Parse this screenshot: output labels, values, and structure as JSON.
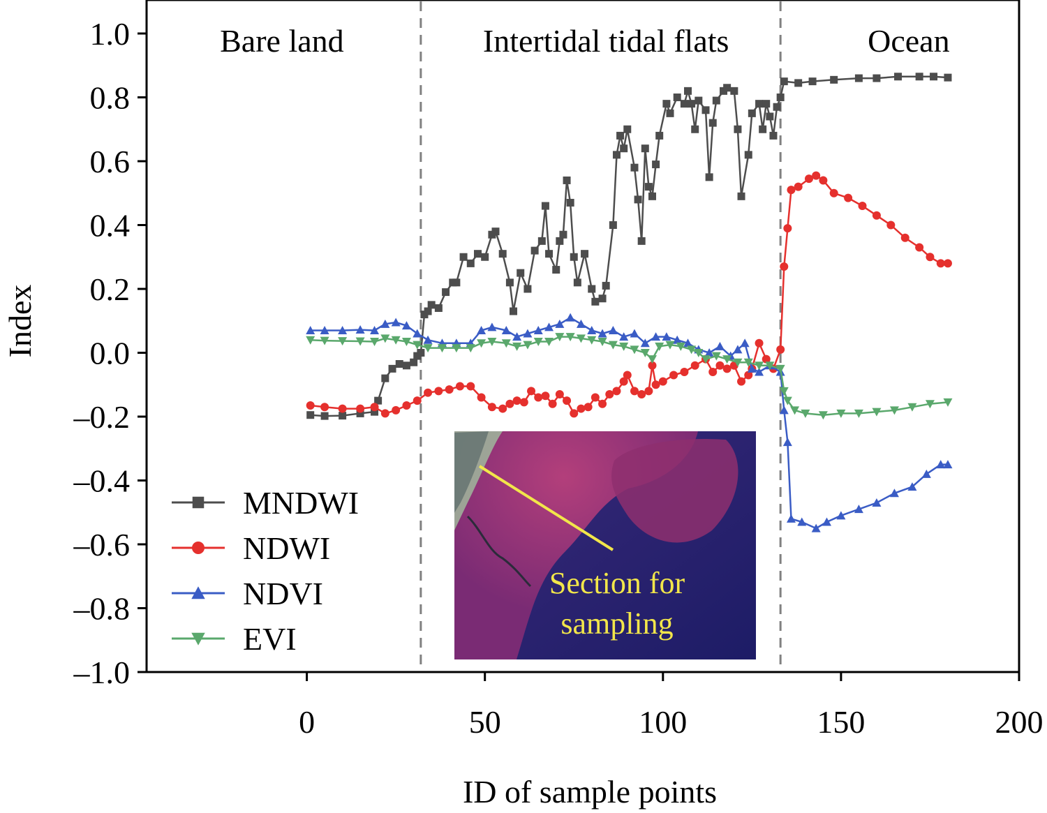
{
  "chart_data": {
    "type": "line",
    "xlabel": "ID of sample points",
    "ylabel": "Index",
    "xlim": [
      -45,
      200
    ],
    "ylim": [
      -1.0,
      1.0
    ],
    "x_ticks": [
      0,
      50,
      100,
      150,
      200
    ],
    "y_ticks": [
      1.0,
      0.8,
      0.6,
      0.4,
      0.2,
      0.0,
      -0.2,
      -0.4,
      -0.6,
      -0.8,
      -1.0
    ],
    "x_tick_labels": [
      "0",
      "50",
      "100",
      "150",
      "200"
    ],
    "y_tick_labels": [
      "1.0",
      "0.8",
      "0.6",
      "0.4",
      "0.2",
      "0.0",
      "–0.2",
      "–0.4",
      "–0.6",
      "–0.8",
      "–1.0"
    ],
    "grid": false,
    "legend_position": "bottom-left",
    "region_dividers": [
      32,
      133
    ],
    "regions": [
      {
        "label": "Bare land",
        "x_center": -7
      },
      {
        "label": "Intertidal tidal flats",
        "x_center": 84
      },
      {
        "label": "Ocean",
        "x_center": 169
      }
    ],
    "inset": {
      "label_lines": [
        "Section for",
        "sampling"
      ]
    },
    "series": [
      {
        "name": "MNDWI",
        "color": "#4d4d4d",
        "marker": "square",
        "points": [
          [
            1,
            -0.195
          ],
          [
            5,
            -0.198
          ],
          [
            10,
            -0.197
          ],
          [
            15,
            -0.19
          ],
          [
            19,
            -0.185
          ],
          [
            20,
            -0.15
          ],
          [
            22,
            -0.08
          ],
          [
            24,
            -0.05
          ],
          [
            26,
            -0.035
          ],
          [
            28,
            -0.04
          ],
          [
            30,
            -0.03
          ],
          [
            31,
            -0.01
          ],
          [
            32,
            0.0
          ],
          [
            33,
            0.12
          ],
          [
            34,
            0.13
          ],
          [
            35,
            0.15
          ],
          [
            37,
            0.14
          ],
          [
            39,
            0.19
          ],
          [
            41,
            0.22
          ],
          [
            42,
            0.22
          ],
          [
            44,
            0.3
          ],
          [
            46,
            0.28
          ],
          [
            48,
            0.31
          ],
          [
            50,
            0.3
          ],
          [
            52,
            0.37
          ],
          [
            53,
            0.38
          ],
          [
            55,
            0.31
          ],
          [
            57,
            0.22
          ],
          [
            58,
            0.13
          ],
          [
            60,
            0.25
          ],
          [
            62,
            0.2
          ],
          [
            64,
            0.32
          ],
          [
            66,
            0.35
          ],
          [
            67,
            0.46
          ],
          [
            68,
            0.31
          ],
          [
            70,
            0.26
          ],
          [
            71,
            0.35
          ],
          [
            72,
            0.37
          ],
          [
            73,
            0.54
          ],
          [
            74,
            0.47
          ],
          [
            75,
            0.3
          ],
          [
            76,
            0.22
          ],
          [
            78,
            0.31
          ],
          [
            80,
            0.2
          ],
          [
            81,
            0.16
          ],
          [
            83,
            0.17
          ],
          [
            84,
            0.21
          ],
          [
            86,
            0.4
          ],
          [
            87,
            0.62
          ],
          [
            88,
            0.68
          ],
          [
            89,
            0.64
          ],
          [
            90,
            0.7
          ],
          [
            92,
            0.58
          ],
          [
            93,
            0.48
          ],
          [
            94,
            0.35
          ],
          [
            95,
            0.64
          ],
          [
            96,
            0.52
          ],
          [
            97,
            0.49
          ],
          [
            98,
            0.59
          ],
          [
            99,
            0.68
          ],
          [
            101,
            0.78
          ],
          [
            102,
            0.75
          ],
          [
            104,
            0.8
          ],
          [
            106,
            0.78
          ],
          [
            107,
            0.82
          ],
          [
            108,
            0.78
          ],
          [
            109,
            0.7
          ],
          [
            110,
            0.79
          ],
          [
            112,
            0.76
          ],
          [
            113,
            0.55
          ],
          [
            114,
            0.72
          ],
          [
            115,
            0.79
          ],
          [
            117,
            0.82
          ],
          [
            118,
            0.83
          ],
          [
            120,
            0.82
          ],
          [
            121,
            0.7
          ],
          [
            122,
            0.49
          ],
          [
            124,
            0.62
          ],
          [
            125,
            0.75
          ],
          [
            127,
            0.78
          ],
          [
            128,
            0.7
          ],
          [
            129,
            0.78
          ],
          [
            130,
            0.74
          ],
          [
            131,
            0.68
          ],
          [
            132,
            0.77
          ],
          [
            133,
            0.8
          ],
          [
            134,
            0.85
          ],
          [
            138,
            0.845
          ],
          [
            142,
            0.85
          ],
          [
            148,
            0.855
          ],
          [
            155,
            0.86
          ],
          [
            160,
            0.86
          ],
          [
            166,
            0.865
          ],
          [
            172,
            0.865
          ],
          [
            176,
            0.865
          ],
          [
            180,
            0.862
          ]
        ]
      },
      {
        "name": "NDWI",
        "color": "#e5302d",
        "marker": "circle",
        "points": [
          [
            1,
            -0.165
          ],
          [
            5,
            -0.17
          ],
          [
            10,
            -0.175
          ],
          [
            15,
            -0.175
          ],
          [
            19,
            -0.17
          ],
          [
            22,
            -0.19
          ],
          [
            25,
            -0.18
          ],
          [
            28,
            -0.165
          ],
          [
            31,
            -0.15
          ],
          [
            34,
            -0.125
          ],
          [
            37,
            -0.12
          ],
          [
            40,
            -0.115
          ],
          [
            43,
            -0.105
          ],
          [
            46,
            -0.105
          ],
          [
            49,
            -0.14
          ],
          [
            52,
            -0.17
          ],
          [
            55,
            -0.175
          ],
          [
            57,
            -0.16
          ],
          [
            59,
            -0.15
          ],
          [
            61,
            -0.155
          ],
          [
            63,
            -0.12
          ],
          [
            65,
            -0.14
          ],
          [
            67,
            -0.135
          ],
          [
            69,
            -0.16
          ],
          [
            71,
            -0.13
          ],
          [
            73,
            -0.15
          ],
          [
            75,
            -0.19
          ],
          [
            77,
            -0.175
          ],
          [
            79,
            -0.17
          ],
          [
            81,
            -0.14
          ],
          [
            83,
            -0.16
          ],
          [
            85,
            -0.13
          ],
          [
            87,
            -0.12
          ],
          [
            89,
            -0.09
          ],
          [
            90,
            -0.07
          ],
          [
            92,
            -0.12
          ],
          [
            94,
            -0.13
          ],
          [
            96,
            -0.12
          ],
          [
            97,
            -0.04
          ],
          [
            98,
            -0.1
          ],
          [
            100,
            -0.09
          ],
          [
            103,
            -0.07
          ],
          [
            106,
            -0.06
          ],
          [
            109,
            -0.04
          ],
          [
            112,
            -0.02
          ],
          [
            114,
            -0.06
          ],
          [
            116,
            -0.04
          ],
          [
            118,
            -0.05
          ],
          [
            120,
            -0.04
          ],
          [
            122,
            -0.09
          ],
          [
            124,
            -0.07
          ],
          [
            125,
            -0.05
          ],
          [
            127,
            0.03
          ],
          [
            129,
            -0.02
          ],
          [
            131,
            -0.05
          ],
          [
            133,
            0.01
          ],
          [
            134,
            0.27
          ],
          [
            135,
            0.39
          ],
          [
            136,
            0.51
          ],
          [
            138,
            0.52
          ],
          [
            141,
            0.545
          ],
          [
            143,
            0.555
          ],
          [
            145,
            0.54
          ],
          [
            148,
            0.5
          ],
          [
            152,
            0.485
          ],
          [
            156,
            0.46
          ],
          [
            160,
            0.43
          ],
          [
            164,
            0.4
          ],
          [
            168,
            0.36
          ],
          [
            172,
            0.33
          ],
          [
            175,
            0.3
          ],
          [
            178,
            0.28
          ],
          [
            180,
            0.28
          ]
        ]
      },
      {
        "name": "NDVI",
        "color": "#3a5cc5",
        "marker": "triangle-up",
        "points": [
          [
            1,
            0.07
          ],
          [
            5,
            0.07
          ],
          [
            10,
            0.07
          ],
          [
            15,
            0.072
          ],
          [
            19,
            0.07
          ],
          [
            22,
            0.09
          ],
          [
            25,
            0.095
          ],
          [
            28,
            0.085
          ],
          [
            31,
            0.06
          ],
          [
            34,
            0.04
          ],
          [
            38,
            0.03
          ],
          [
            42,
            0.03
          ],
          [
            46,
            0.03
          ],
          [
            49,
            0.07
          ],
          [
            52,
            0.08
          ],
          [
            56,
            0.07
          ],
          [
            59,
            0.05
          ],
          [
            62,
            0.06
          ],
          [
            65,
            0.07
          ],
          [
            68,
            0.08
          ],
          [
            71,
            0.09
          ],
          [
            74,
            0.11
          ],
          [
            77,
            0.09
          ],
          [
            80,
            0.07
          ],
          [
            83,
            0.06
          ],
          [
            86,
            0.07
          ],
          [
            89,
            0.05
          ],
          [
            92,
            0.06
          ],
          [
            95,
            0.03
          ],
          [
            98,
            0.05
          ],
          [
            101,
            0.05
          ],
          [
            104,
            0.04
          ],
          [
            107,
            0.03
          ],
          [
            110,
            0.01
          ],
          [
            113,
            0.0
          ],
          [
            116,
            0.02
          ],
          [
            119,
            -0.01
          ],
          [
            121,
            0.01
          ],
          [
            123,
            0.03
          ],
          [
            125,
            -0.05
          ],
          [
            127,
            -0.06
          ],
          [
            130,
            -0.04
          ],
          [
            133,
            -0.06
          ],
          [
            134,
            -0.18
          ],
          [
            135,
            -0.28
          ],
          [
            136,
            -0.52
          ],
          [
            139,
            -0.53
          ],
          [
            143,
            -0.55
          ],
          [
            146,
            -0.53
          ],
          [
            150,
            -0.51
          ],
          [
            155,
            -0.49
          ],
          [
            160,
            -0.47
          ],
          [
            165,
            -0.44
          ],
          [
            170,
            -0.42
          ],
          [
            174,
            -0.38
          ],
          [
            178,
            -0.35
          ],
          [
            180,
            -0.35
          ]
        ]
      },
      {
        "name": "EVI",
        "color": "#5aa86c",
        "marker": "triangle-down",
        "points": [
          [
            1,
            0.04
          ],
          [
            5,
            0.038
          ],
          [
            10,
            0.037
          ],
          [
            15,
            0.036
          ],
          [
            19,
            0.035
          ],
          [
            22,
            0.045
          ],
          [
            25,
            0.04
          ],
          [
            28,
            0.035
          ],
          [
            31,
            0.025
          ],
          [
            34,
            0.015
          ],
          [
            38,
            0.015
          ],
          [
            42,
            0.015
          ],
          [
            46,
            0.015
          ],
          [
            49,
            0.03
          ],
          [
            52,
            0.035
          ],
          [
            56,
            0.03
          ],
          [
            59,
            0.02
          ],
          [
            62,
            0.025
          ],
          [
            65,
            0.035
          ],
          [
            68,
            0.035
          ],
          [
            71,
            0.05
          ],
          [
            74,
            0.05
          ],
          [
            77,
            0.045
          ],
          [
            80,
            0.04
          ],
          [
            83,
            0.035
          ],
          [
            86,
            0.025
          ],
          [
            89,
            0.02
          ],
          [
            92,
            0.01
          ],
          [
            95,
            0.0
          ],
          [
            97,
            -0.02
          ],
          [
            99,
            0.02
          ],
          [
            102,
            0.025
          ],
          [
            105,
            0.02
          ],
          [
            108,
            0.01
          ],
          [
            110,
            0.0
          ],
          [
            112,
            -0.02
          ],
          [
            115,
            -0.01
          ],
          [
            118,
            -0.02
          ],
          [
            121,
            -0.03
          ],
          [
            124,
            -0.03
          ],
          [
            127,
            -0.04
          ],
          [
            130,
            -0.04
          ],
          [
            133,
            -0.05
          ],
          [
            134,
            -0.12
          ],
          [
            135,
            -0.15
          ],
          [
            137,
            -0.18
          ],
          [
            140,
            -0.19
          ],
          [
            145,
            -0.195
          ],
          [
            150,
            -0.19
          ],
          [
            155,
            -0.19
          ],
          [
            160,
            -0.185
          ],
          [
            165,
            -0.18
          ],
          [
            170,
            -0.17
          ],
          [
            175,
            -0.16
          ],
          [
            180,
            -0.155
          ]
        ]
      }
    ]
  }
}
